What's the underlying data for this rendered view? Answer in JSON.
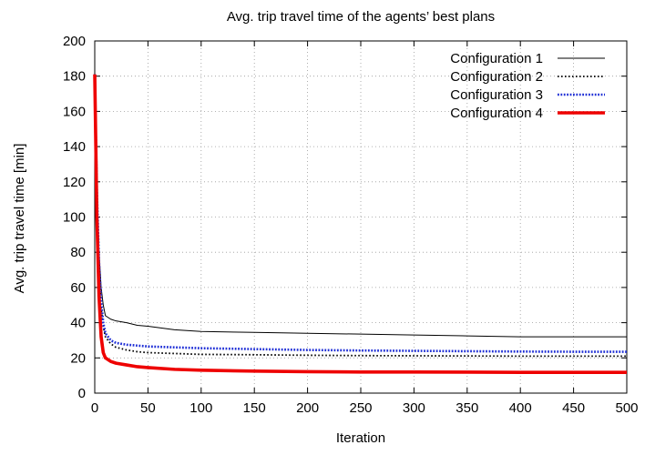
{
  "chart_data": {
    "type": "line",
    "title": "Avg. trip travel time of the agents’ best plans",
    "xlabel": "Iteration",
    "ylabel": "Avg. trip travel time [min]",
    "xlim": [
      0,
      500
    ],
    "ylim": [
      0,
      200
    ],
    "xticks": [
      0,
      50,
      100,
      150,
      200,
      250,
      300,
      350,
      400,
      450,
      500
    ],
    "yticks": [
      0,
      20,
      40,
      60,
      80,
      100,
      120,
      140,
      160,
      180,
      200
    ],
    "grid": true,
    "legend_position": "top-right",
    "series": [
      {
        "name": "Configuration 1",
        "color": "#000000",
        "style": "solid-thin",
        "x": [
          0,
          2,
          4,
          6,
          8,
          10,
          15,
          20,
          30,
          40,
          50,
          75,
          100,
          150,
          200,
          250,
          300,
          350,
          400,
          450,
          500
        ],
        "y": [
          181,
          120,
          80,
          60,
          50,
          44,
          42,
          41,
          40,
          38.5,
          38,
          36,
          35,
          34.5,
          34,
          33.5,
          33,
          32.5,
          32,
          32,
          32
        ]
      },
      {
        "name": "Configuration 2",
        "color": "#000000",
        "style": "dotted",
        "x": [
          0,
          2,
          4,
          6,
          8,
          10,
          15,
          20,
          30,
          40,
          50,
          75,
          100,
          150,
          200,
          250,
          300,
          350,
          400,
          450,
          500
        ],
        "y": [
          181,
          110,
          70,
          48,
          38,
          32,
          28,
          26,
          24.5,
          23.5,
          23,
          22.5,
          22,
          21.8,
          21.5,
          21.3,
          21.2,
          21.1,
          21,
          21,
          21
        ]
      },
      {
        "name": "Configuration 3",
        "color": "#1f2fd6",
        "style": "dotted-thick",
        "x": [
          0,
          2,
          4,
          6,
          8,
          10,
          15,
          20,
          30,
          40,
          50,
          75,
          100,
          150,
          200,
          250,
          300,
          350,
          400,
          450,
          500
        ],
        "y": [
          181,
          115,
          75,
          52,
          40,
          34,
          30,
          28.5,
          27.5,
          27,
          26.5,
          26,
          25.5,
          25,
          24.5,
          24.2,
          24,
          23.8,
          23.6,
          23.5,
          23.5
        ]
      },
      {
        "name": "Configuration 4",
        "color": "#ee0000",
        "style": "solid-thick",
        "x": [
          0,
          2,
          4,
          6,
          8,
          10,
          15,
          20,
          30,
          40,
          50,
          75,
          100,
          150,
          200,
          250,
          300,
          350,
          400,
          450,
          500
        ],
        "y": [
          181,
          100,
          55,
          32,
          23,
          20,
          18,
          17,
          16,
          15,
          14.5,
          13.5,
          13,
          12.5,
          12.2,
          12,
          12,
          11.9,
          11.8,
          11.8,
          11.8
        ]
      }
    ]
  }
}
